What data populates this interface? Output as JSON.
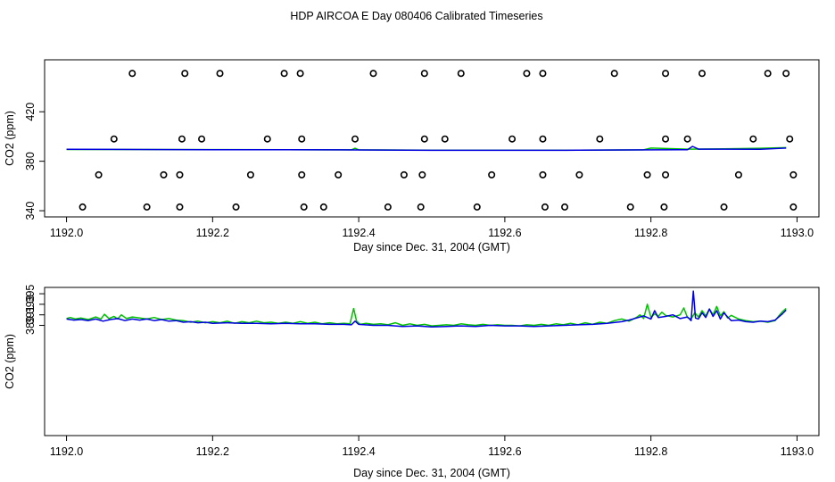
{
  "title": "HDP AIRCOA E  Day 080406  Calibrated Timeseries",
  "colors": {
    "series_1": "#00c000",
    "series_2": "#0000e0",
    "axes": "#000000",
    "points": "#000000"
  },
  "chart_data": [
    {
      "type": "scatter",
      "xlabel": "Day since Dec. 31, 2004 (GMT)",
      "ylabel": "CO2 (ppm)",
      "xlim": [
        1191.97,
        1193.03
      ],
      "ylim": [
        335,
        462
      ],
      "x_ticks": [
        "1192.0",
        "1192.2",
        "1192.4",
        "1192.6",
        "1192.8",
        "1193.0"
      ],
      "x_tick_values": [
        1192.0,
        1192.2,
        1192.4,
        1192.6,
        1192.8,
        1193.0
      ],
      "y_ticks": [
        "340",
        "380",
        "420"
      ],
      "y_tick_values": [
        340,
        380,
        420
      ],
      "grid": false,
      "points": [
        {
          "x": 1192.09,
          "y": 451
        },
        {
          "x": 1192.162,
          "y": 451
        },
        {
          "x": 1192.21,
          "y": 451
        },
        {
          "x": 1192.298,
          "y": 451
        },
        {
          "x": 1192.32,
          "y": 451
        },
        {
          "x": 1192.42,
          "y": 451
        },
        {
          "x": 1192.49,
          "y": 451
        },
        {
          "x": 1192.54,
          "y": 451
        },
        {
          "x": 1192.63,
          "y": 451
        },
        {
          "x": 1192.652,
          "y": 451
        },
        {
          "x": 1192.75,
          "y": 451
        },
        {
          "x": 1192.82,
          "y": 451
        },
        {
          "x": 1192.87,
          "y": 451
        },
        {
          "x": 1192.96,
          "y": 451
        },
        {
          "x": 1192.985,
          "y": 451
        },
        {
          "x": 1192.065,
          "y": 398
        },
        {
          "x": 1192.158,
          "y": 398
        },
        {
          "x": 1192.185,
          "y": 398
        },
        {
          "x": 1192.275,
          "y": 398
        },
        {
          "x": 1192.322,
          "y": 398
        },
        {
          "x": 1192.395,
          "y": 398
        },
        {
          "x": 1192.49,
          "y": 398
        },
        {
          "x": 1192.518,
          "y": 398
        },
        {
          "x": 1192.61,
          "y": 398
        },
        {
          "x": 1192.652,
          "y": 398
        },
        {
          "x": 1192.73,
          "y": 398
        },
        {
          "x": 1192.82,
          "y": 398
        },
        {
          "x": 1192.85,
          "y": 398
        },
        {
          "x": 1192.94,
          "y": 398
        },
        {
          "x": 1192.99,
          "y": 398
        },
        {
          "x": 1192.044,
          "y": 369
        },
        {
          "x": 1192.133,
          "y": 369
        },
        {
          "x": 1192.155,
          "y": 369
        },
        {
          "x": 1192.252,
          "y": 369
        },
        {
          "x": 1192.322,
          "y": 369
        },
        {
          "x": 1192.372,
          "y": 369
        },
        {
          "x": 1192.462,
          "y": 369
        },
        {
          "x": 1192.487,
          "y": 369
        },
        {
          "x": 1192.582,
          "y": 369
        },
        {
          "x": 1192.652,
          "y": 369
        },
        {
          "x": 1192.702,
          "y": 369
        },
        {
          "x": 1192.795,
          "y": 369
        },
        {
          "x": 1192.82,
          "y": 369
        },
        {
          "x": 1192.92,
          "y": 369
        },
        {
          "x": 1192.995,
          "y": 369
        },
        {
          "x": 1192.022,
          "y": 343
        },
        {
          "x": 1192.11,
          "y": 343
        },
        {
          "x": 1192.155,
          "y": 343
        },
        {
          "x": 1192.232,
          "y": 343
        },
        {
          "x": 1192.325,
          "y": 343
        },
        {
          "x": 1192.352,
          "y": 343
        },
        {
          "x": 1192.44,
          "y": 343
        },
        {
          "x": 1192.485,
          "y": 343
        },
        {
          "x": 1192.562,
          "y": 343
        },
        {
          "x": 1192.655,
          "y": 343
        },
        {
          "x": 1192.682,
          "y": 343
        },
        {
          "x": 1192.772,
          "y": 343
        },
        {
          "x": 1192.818,
          "y": 343
        },
        {
          "x": 1192.9,
          "y": 343
        },
        {
          "x": 1192.995,
          "y": 343
        }
      ],
      "series": [
        {
          "color": "#00c000",
          "x": [
            1192.0,
            1192.1,
            1192.2,
            1192.3,
            1192.35,
            1192.39,
            1192.395,
            1192.4,
            1192.5,
            1192.6,
            1192.7,
            1192.79,
            1192.8,
            1192.85,
            1192.9,
            1192.95,
            1192.985
          ],
          "y": [
            389.5,
            389.5,
            389.4,
            389.3,
            389.2,
            389.2,
            390.5,
            389.2,
            389.0,
            389.0,
            389.0,
            389.2,
            390.6,
            389.8,
            390.0,
            390.5,
            391.0
          ]
        },
        {
          "color": "#0000e0",
          "x": [
            1192.0,
            1192.1,
            1192.2,
            1192.3,
            1192.4,
            1192.5,
            1192.6,
            1192.7,
            1192.8,
            1192.85,
            1192.857,
            1192.865,
            1192.9,
            1192.95,
            1192.985
          ],
          "y": [
            389.6,
            389.5,
            389.3,
            389.3,
            389.1,
            388.8,
            388.8,
            388.9,
            389.2,
            389.3,
            392.0,
            389.8,
            389.8,
            389.7,
            390.6
          ]
        }
      ]
    },
    {
      "type": "line",
      "xlabel": "Day since Dec. 31, 2004 (GMT)",
      "ylabel": "CO2 (ppm)",
      "xlim": [
        1191.97,
        1193.03
      ],
      "ylim": [
        368.1,
        396.2
      ],
      "x_ticks": [
        "1192.0",
        "1192.2",
        "1192.4",
        "1192.6",
        "1192.8",
        "1193.0"
      ],
      "x_tick_values": [
        1192.0,
        1192.2,
        1192.4,
        1192.6,
        1192.8,
        1193.0
      ],
      "y_ticks": [
        "389",
        "391",
        "393",
        "395"
      ],
      "y_tick_values": [
        389,
        391,
        393,
        395
      ],
      "grid": false,
      "series": [
        {
          "color": "#00c000",
          "x": [
            1192.0,
            1192.005,
            1192.012,
            1192.02,
            1192.03,
            1192.04,
            1192.047,
            1192.052,
            1192.058,
            1192.065,
            1192.07,
            1192.075,
            1192.082,
            1192.09,
            1192.1,
            1192.11,
            1192.12,
            1192.13,
            1192.14,
            1192.15,
            1192.16,
            1192.17,
            1192.18,
            1192.19,
            1192.2,
            1192.21,
            1192.22,
            1192.23,
            1192.24,
            1192.25,
            1192.26,
            1192.27,
            1192.28,
            1192.29,
            1192.3,
            1192.31,
            1192.32,
            1192.33,
            1192.34,
            1192.35,
            1192.36,
            1192.37,
            1192.38,
            1192.388,
            1192.393,
            1192.397,
            1192.402,
            1192.41,
            1192.42,
            1192.43,
            1192.44,
            1192.45,
            1192.46,
            1192.47,
            1192.48,
            1192.49,
            1192.5,
            1192.51,
            1192.52,
            1192.53,
            1192.54,
            1192.55,
            1192.56,
            1192.57,
            1192.58,
            1192.59,
            1192.6,
            1192.61,
            1192.62,
            1192.63,
            1192.64,
            1192.65,
            1192.66,
            1192.67,
            1192.68,
            1192.69,
            1192.7,
            1192.71,
            1192.72,
            1192.73,
            1192.74,
            1192.75,
            1192.76,
            1192.77,
            1192.78,
            1192.785,
            1192.79,
            1192.795,
            1192.8,
            1192.805,
            1192.81,
            1192.815,
            1192.82,
            1192.83,
            1192.84,
            1192.845,
            1192.85,
            1192.855,
            1192.86,
            1192.865,
            1192.87,
            1192.875,
            1192.88,
            1192.885,
            1192.89,
            1192.895,
            1192.9,
            1192.905,
            1192.91,
            1192.92,
            1192.93,
            1192.94,
            1192.95,
            1192.96,
            1192.97,
            1192.975,
            1192.98,
            1192.985
          ],
          "y": [
            390.3,
            390.5,
            390.2,
            390.4,
            390.1,
            390.6,
            390.2,
            391.1,
            390.3,
            390.7,
            390.2,
            391.0,
            390.3,
            390.6,
            390.4,
            390.2,
            390.5,
            390.1,
            390.3,
            390.0,
            389.9,
            389.6,
            389.8,
            389.5,
            389.7,
            389.5,
            389.8,
            389.4,
            389.7,
            389.5,
            389.8,
            389.5,
            389.6,
            389.4,
            389.6,
            389.4,
            389.7,
            389.4,
            389.6,
            389.3,
            389.5,
            389.3,
            389.4,
            389.3,
            392.2,
            389.8,
            389.2,
            389.4,
            389.2,
            389.3,
            389.1,
            389.5,
            389.0,
            389.3,
            389.0,
            389.2,
            388.9,
            389.0,
            389.1,
            389.0,
            389.3,
            389.1,
            389.0,
            389.2,
            389.0,
            389.1,
            389.0,
            389.0,
            388.9,
            389.1,
            389.0,
            389.2,
            389.0,
            389.3,
            389.1,
            389.4,
            389.1,
            389.5,
            389.2,
            389.6,
            389.4,
            389.9,
            390.2,
            389.8,
            390.5,
            391.0,
            390.3,
            393.0,
            390.5,
            391.2,
            390.7,
            391.5,
            390.9,
            390.6,
            391.0,
            392.3,
            390.5,
            390.2,
            391.4,
            390.6,
            391.8,
            390.8,
            392.1,
            391.0,
            392.6,
            390.8,
            391.6,
            390.4,
            390.9,
            390.2,
            389.9,
            389.7,
            389.8,
            389.6,
            389.9,
            390.8,
            391.6,
            392.2
          ]
        },
        {
          "color": "#0000e0",
          "x": [
            1192.0,
            1192.01,
            1192.02,
            1192.03,
            1192.04,
            1192.05,
            1192.06,
            1192.07,
            1192.08,
            1192.09,
            1192.1,
            1192.11,
            1192.12,
            1192.13,
            1192.14,
            1192.15,
            1192.16,
            1192.17,
            1192.18,
            1192.19,
            1192.2,
            1192.22,
            1192.24,
            1192.26,
            1192.28,
            1192.3,
            1192.32,
            1192.34,
            1192.36,
            1192.38,
            1192.39,
            1192.395,
            1192.4,
            1192.42,
            1192.44,
            1192.46,
            1192.48,
            1192.5,
            1192.52,
            1192.54,
            1192.56,
            1192.58,
            1192.6,
            1192.62,
            1192.64,
            1192.66,
            1192.68,
            1192.7,
            1192.72,
            1192.74,
            1192.76,
            1192.77,
            1192.78,
            1192.79,
            1192.8,
            1192.805,
            1192.81,
            1192.82,
            1192.83,
            1192.84,
            1192.85,
            1192.855,
            1192.858,
            1192.861,
            1192.865,
            1192.87,
            1192.875,
            1192.88,
            1192.885,
            1192.89,
            1192.895,
            1192.9,
            1192.905,
            1192.91,
            1192.92,
            1192.93,
            1192.94,
            1192.95,
            1192.96,
            1192.97,
            1192.98,
            1192.985
          ],
          "y": [
            390.2,
            390.0,
            390.1,
            389.9,
            390.2,
            389.8,
            390.1,
            390.3,
            389.9,
            390.2,
            390.0,
            390.2,
            389.9,
            390.1,
            389.8,
            389.9,
            389.6,
            389.7,
            389.5,
            389.6,
            389.4,
            389.5,
            389.4,
            389.4,
            389.3,
            389.4,
            389.3,
            389.3,
            389.2,
            389.2,
            389.1,
            389.8,
            389.2,
            389.0,
            389.0,
            388.8,
            388.9,
            388.7,
            388.8,
            388.9,
            388.8,
            389.0,
            388.9,
            388.9,
            388.8,
            388.9,
            389.0,
            389.1,
            389.2,
            389.4,
            389.7,
            390.0,
            390.4,
            390.8,
            390.2,
            391.8,
            390.5,
            390.7,
            391.0,
            390.3,
            390.6,
            389.9,
            395.5,
            390.4,
            390.2,
            391.4,
            390.5,
            392.1,
            390.7,
            391.8,
            390.2,
            391.4,
            390.6,
            389.9,
            390.0,
            389.7,
            389.6,
            389.8,
            389.7,
            390.0,
            391.2,
            391.9
          ]
        }
      ]
    }
  ]
}
